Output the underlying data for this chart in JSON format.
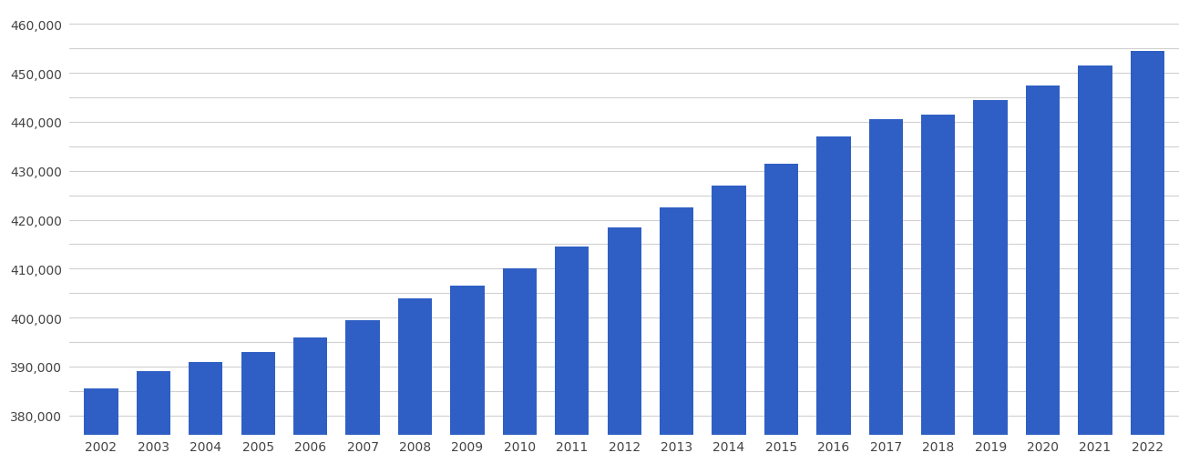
{
  "years": [
    "2002",
    "2003",
    "2004",
    "2005",
    "2006",
    "2007",
    "2008",
    "2009",
    "2010",
    "2011",
    "2012",
    "2013",
    "2014",
    "2015",
    "2016",
    "2017",
    "2018",
    "2019",
    "2020",
    "2021",
    "2022"
  ],
  "values": [
    385500,
    389000,
    391000,
    393000,
    396000,
    399500,
    404000,
    406500,
    410000,
    414500,
    418500,
    422500,
    427000,
    431500,
    437000,
    440500,
    441500,
    444500,
    447500,
    451500,
    454500
  ],
  "bar_color": "#2f5fc4",
  "background_color": "#ffffff",
  "grid_color": "#d0d0d0",
  "tick_color": "#444444",
  "ylim_min": 376000,
  "ylim_max": 463000,
  "yticks": [
    380000,
    390000,
    400000,
    410000,
    420000,
    430000,
    440000,
    450000,
    460000
  ],
  "minor_yticks": [
    385000,
    395000,
    405000,
    415000,
    425000,
    435000,
    445000,
    455000
  ],
  "bar_width": 0.65
}
